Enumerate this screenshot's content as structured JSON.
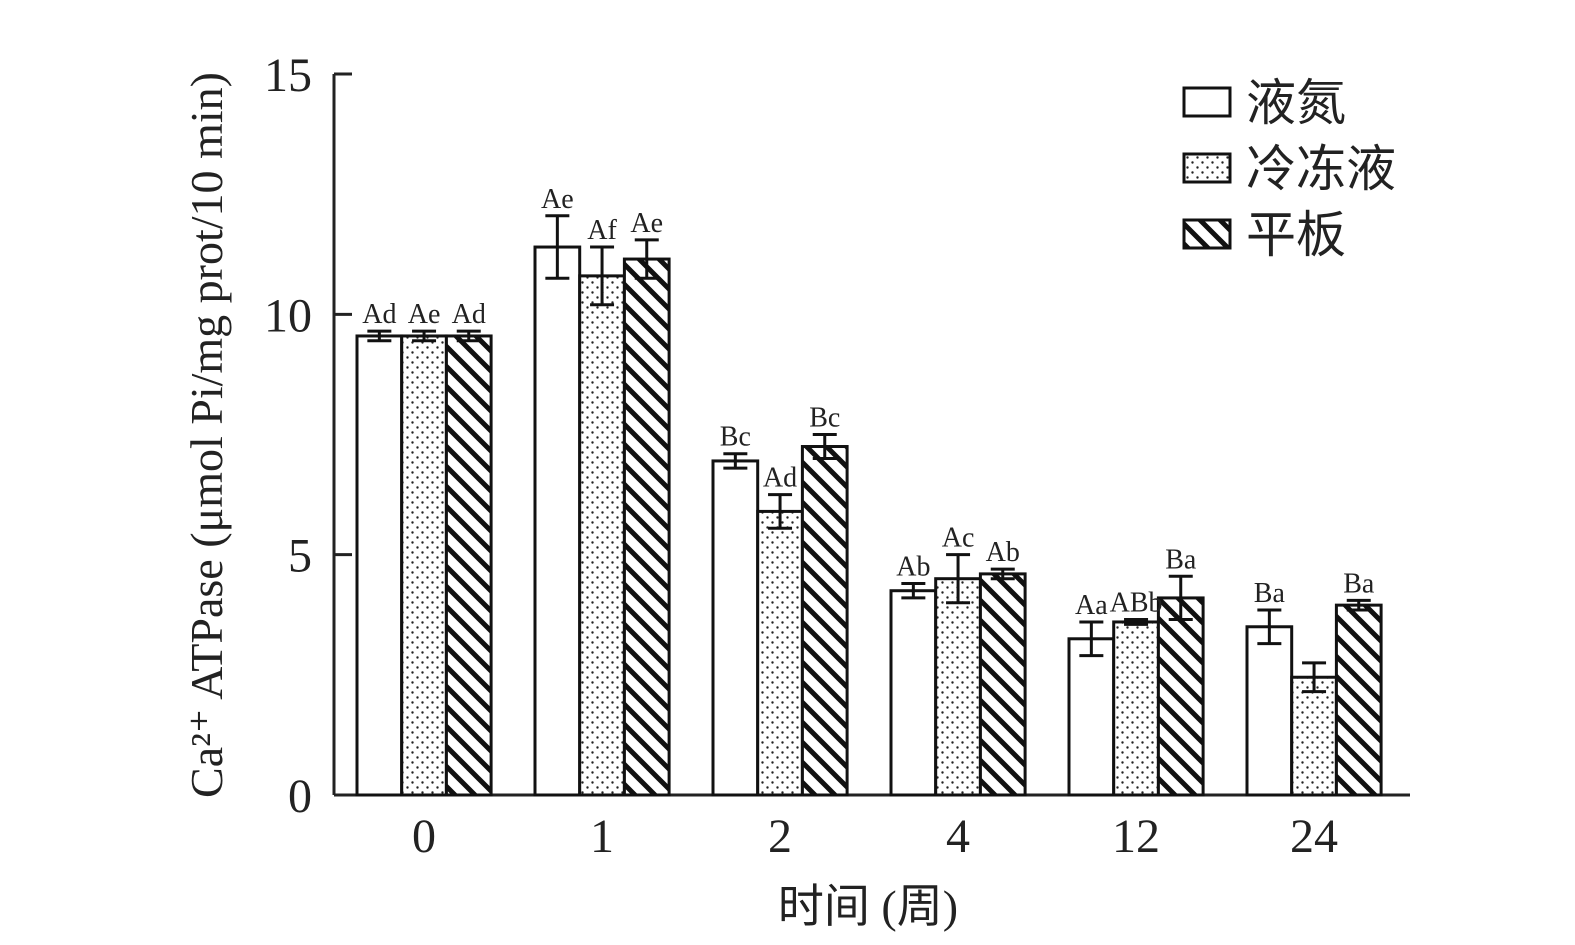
{
  "chart_data": {
    "type": "bar",
    "title": "",
    "xlabel": "时间 (周)",
    "ylabel": "Ca²⁺ ATPase (μmol Pi/mg prot/10 min)",
    "ylim": [
      0,
      15
    ],
    "yticks": [
      "0",
      "5",
      "10",
      "15"
    ],
    "categories": [
      "0",
      "1",
      "2",
      "4",
      "12",
      "24"
    ],
    "grid": false,
    "legend_position": "top-right",
    "series": [
      {
        "name": "液氮",
        "pattern": "solid-white",
        "values": [
          9.55,
          11.4,
          6.95,
          4.25,
          3.25,
          3.5
        ],
        "errors": [
          0.1,
          0.65,
          0.15,
          0.15,
          0.35,
          0.35
        ],
        "labels": [
          "Ad",
          "Ae",
          "Bc",
          "Ab",
          "Aa",
          "Ba"
        ]
      },
      {
        "name": "冷冻液",
        "pattern": "dotted",
        "values": [
          9.55,
          10.8,
          5.9,
          4.5,
          3.6,
          2.45
        ],
        "errors": [
          0.1,
          0.6,
          0.35,
          0.5,
          0.05,
          0.3
        ],
        "labels": [
          "Ae",
          "Af",
          "Ad",
          "Ac",
          "ABb",
          "—"
        ]
      },
      {
        "name": "平板",
        "pattern": "diagonal-hatch",
        "values": [
          9.55,
          11.15,
          7.25,
          4.6,
          4.1,
          3.95
        ],
        "errors": [
          0.1,
          0.4,
          0.25,
          0.1,
          0.45,
          0.1
        ],
        "labels": [
          "Ad",
          "Ae",
          "Bc",
          "Ab",
          "Ba",
          "Ba"
        ]
      }
    ]
  }
}
